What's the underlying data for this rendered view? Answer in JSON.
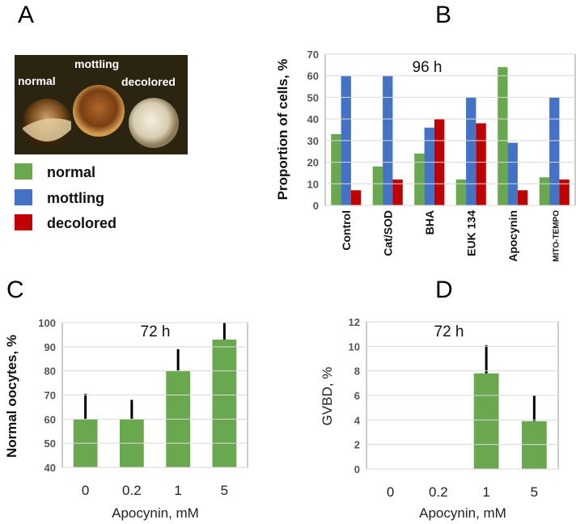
{
  "panels": {
    "a": "A",
    "b": "B",
    "c": "C",
    "d": "D"
  },
  "photo": {
    "labels": [
      "normal",
      "mottling",
      "decolored"
    ]
  },
  "legend": [
    {
      "label": "normal",
      "color": "#6aa84f"
    },
    {
      "label": "mottling",
      "color": "#4472c4"
    },
    {
      "label": "decolored",
      "color": "#c00000"
    }
  ],
  "chart_data": [
    {
      "panel": "B",
      "type": "bar",
      "annotation": "96 h",
      "ylabel": "Proportion of cells, %",
      "xlabel": "",
      "ylim": [
        0,
        70
      ],
      "yticks": [
        0,
        10,
        20,
        30,
        40,
        50,
        60,
        70
      ],
      "grid": true,
      "categories": [
        "Control",
        "Cat/SOD",
        "BHA",
        "EUK 134",
        "Apocynin",
        "MITO-TEMPO"
      ],
      "series": [
        {
          "name": "normal",
          "color": "#6aa84f",
          "values": [
            33,
            18,
            24,
            12,
            64,
            13
          ]
        },
        {
          "name": "mottling",
          "color": "#4472c4",
          "values": [
            60,
            60,
            36,
            50,
            29,
            50
          ]
        },
        {
          "name": "decolored",
          "color": "#c00000",
          "values": [
            7,
            12,
            40,
            38,
            7,
            12
          ]
        }
      ]
    },
    {
      "panel": "C",
      "type": "bar",
      "annotation": "72 h",
      "ylabel": "Normal oocytes, %",
      "xlabel": "Apocynin, mM",
      "ylim": [
        40,
        100
      ],
      "yticks": [
        40,
        50,
        60,
        70,
        80,
        90,
        100
      ],
      "grid": true,
      "categories": [
        "0",
        "0.2",
        "1",
        "5"
      ],
      "values": [
        60,
        60,
        80,
        93
      ],
      "error_upper": [
        70.5,
        68,
        89,
        100
      ],
      "color": "#6aa84f"
    },
    {
      "panel": "D",
      "type": "bar",
      "annotation": "72 h",
      "ylabel": "GVBD, %",
      "xlabel": "Apocynin, mM",
      "ylim": [
        0,
        12
      ],
      "yticks": [
        0,
        2,
        4,
        6,
        8,
        10,
        12
      ],
      "grid": true,
      "categories": [
        "0",
        "0.2",
        "1",
        "5"
      ],
      "values": [
        0,
        0,
        7.8,
        3.9
      ],
      "error_upper": [
        0,
        0,
        10.1,
        6.0
      ],
      "color": "#6aa84f"
    }
  ]
}
